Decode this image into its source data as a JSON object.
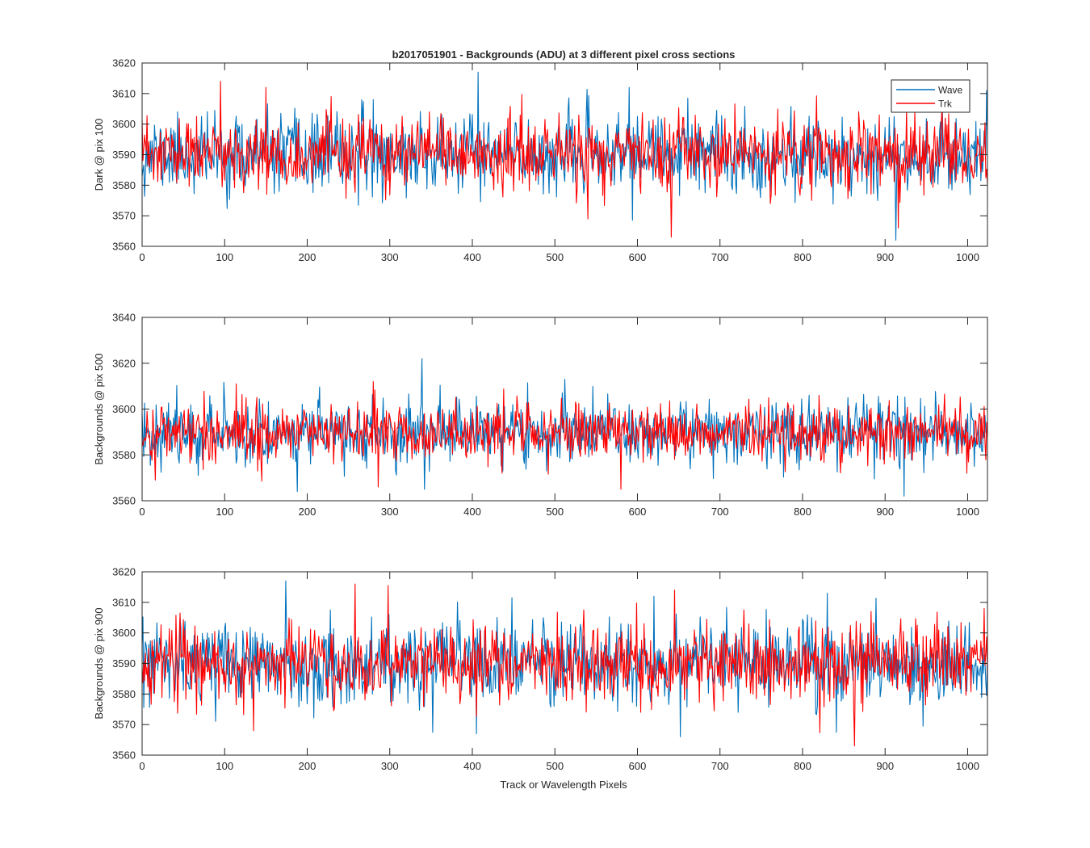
{
  "figure_title": "b2017051901 - Backgrounds (ADU) at 3 different pixel cross sections",
  "xlabel": "Track or Wavelength Pixels",
  "series_colors": {
    "Wave": "#0072BD",
    "Trk": "#FF0000"
  },
  "chart_data": [
    {
      "type": "line",
      "title": "b2017051901 - Backgrounds (ADU) at 3 different pixel cross sections",
      "ylabel": "Dark @ pix 100",
      "xlabel": "",
      "xlim": [
        0,
        1024
      ],
      "ylim": [
        3560,
        3620
      ],
      "xticks": [
        0,
        100,
        200,
        300,
        400,
        500,
        600,
        700,
        800,
        900,
        1000
      ],
      "yticks": [
        3560,
        3570,
        3580,
        3590,
        3600,
        3610,
        3620
      ],
      "legend": {
        "entries": [
          "Wave",
          "Trk"
        ],
        "placement": "top-right"
      },
      "series": [
        {
          "name": "Wave",
          "color": "#0072BD",
          "mean": 3590,
          "std": 6.2,
          "seed": 11,
          "spikes": [
            [
              407,
              3617
            ],
            [
              913,
              3562
            ],
            [
              1023,
              3611
            ],
            [
              590,
              3612
            ],
            [
              280,
              3608
            ]
          ]
        },
        {
          "name": "Trk",
          "color": "#FF0000",
          "mean": 3590,
          "std": 5.8,
          "seed": 23,
          "spikes": [
            [
              95,
              3614
            ],
            [
              641,
              3563
            ],
            [
              916,
              3566
            ],
            [
              540,
              3569
            ],
            [
              150,
              3612
            ]
          ]
        }
      ]
    },
    {
      "type": "line",
      "title": "",
      "ylabel": "Backgrounds @ pix 500",
      "xlabel": "",
      "xlim": [
        0,
        1024
      ],
      "ylim": [
        3560,
        3640
      ],
      "xticks": [
        0,
        100,
        200,
        300,
        400,
        500,
        600,
        700,
        800,
        900,
        1000
      ],
      "yticks": [
        3560,
        3580,
        3600,
        3620,
        3640
      ],
      "series": [
        {
          "name": "Wave",
          "color": "#0072BD",
          "mean": 3590,
          "std": 7.0,
          "seed": 37,
          "spikes": [
            [
              339,
              3622
            ],
            [
              923,
              3562
            ],
            [
              188,
              3564
            ],
            [
              342,
              3565
            ],
            [
              512,
              3613
            ]
          ]
        },
        {
          "name": "Trk",
          "color": "#FF0000",
          "mean": 3590,
          "std": 6.4,
          "seed": 41,
          "spikes": [
            [
              580,
              3565
            ],
            [
              280,
              3612
            ],
            [
              16,
              3569
            ],
            [
              286,
              3566
            ],
            [
              820,
              3606
            ]
          ]
        }
      ]
    },
    {
      "type": "line",
      "title": "",
      "ylabel": "Backgrounds @ pix 900",
      "xlabel": "Track or Wavelength Pixels",
      "xlim": [
        0,
        1024
      ],
      "ylim": [
        3560,
        3620
      ],
      "xticks": [
        0,
        100,
        200,
        300,
        400,
        500,
        600,
        700,
        800,
        900,
        1000
      ],
      "yticks": [
        3560,
        3570,
        3580,
        3590,
        3600,
        3610,
        3620
      ],
      "series": [
        {
          "name": "Wave",
          "color": "#0072BD",
          "mean": 3590,
          "std": 6.6,
          "seed": 53,
          "spikes": [
            [
              174,
              3617
            ],
            [
              652,
              3566
            ],
            [
              405,
              3567
            ],
            [
              830,
              3613
            ],
            [
              620,
              3612
            ]
          ]
        },
        {
          "name": "Trk",
          "color": "#FF0000",
          "mean": 3590,
          "std": 6.2,
          "seed": 67,
          "spikes": [
            [
              258,
              3616
            ],
            [
              645,
              3614
            ],
            [
              863,
              3563
            ],
            [
              135,
              3568
            ],
            [
              1020,
              3608
            ]
          ]
        }
      ]
    }
  ]
}
